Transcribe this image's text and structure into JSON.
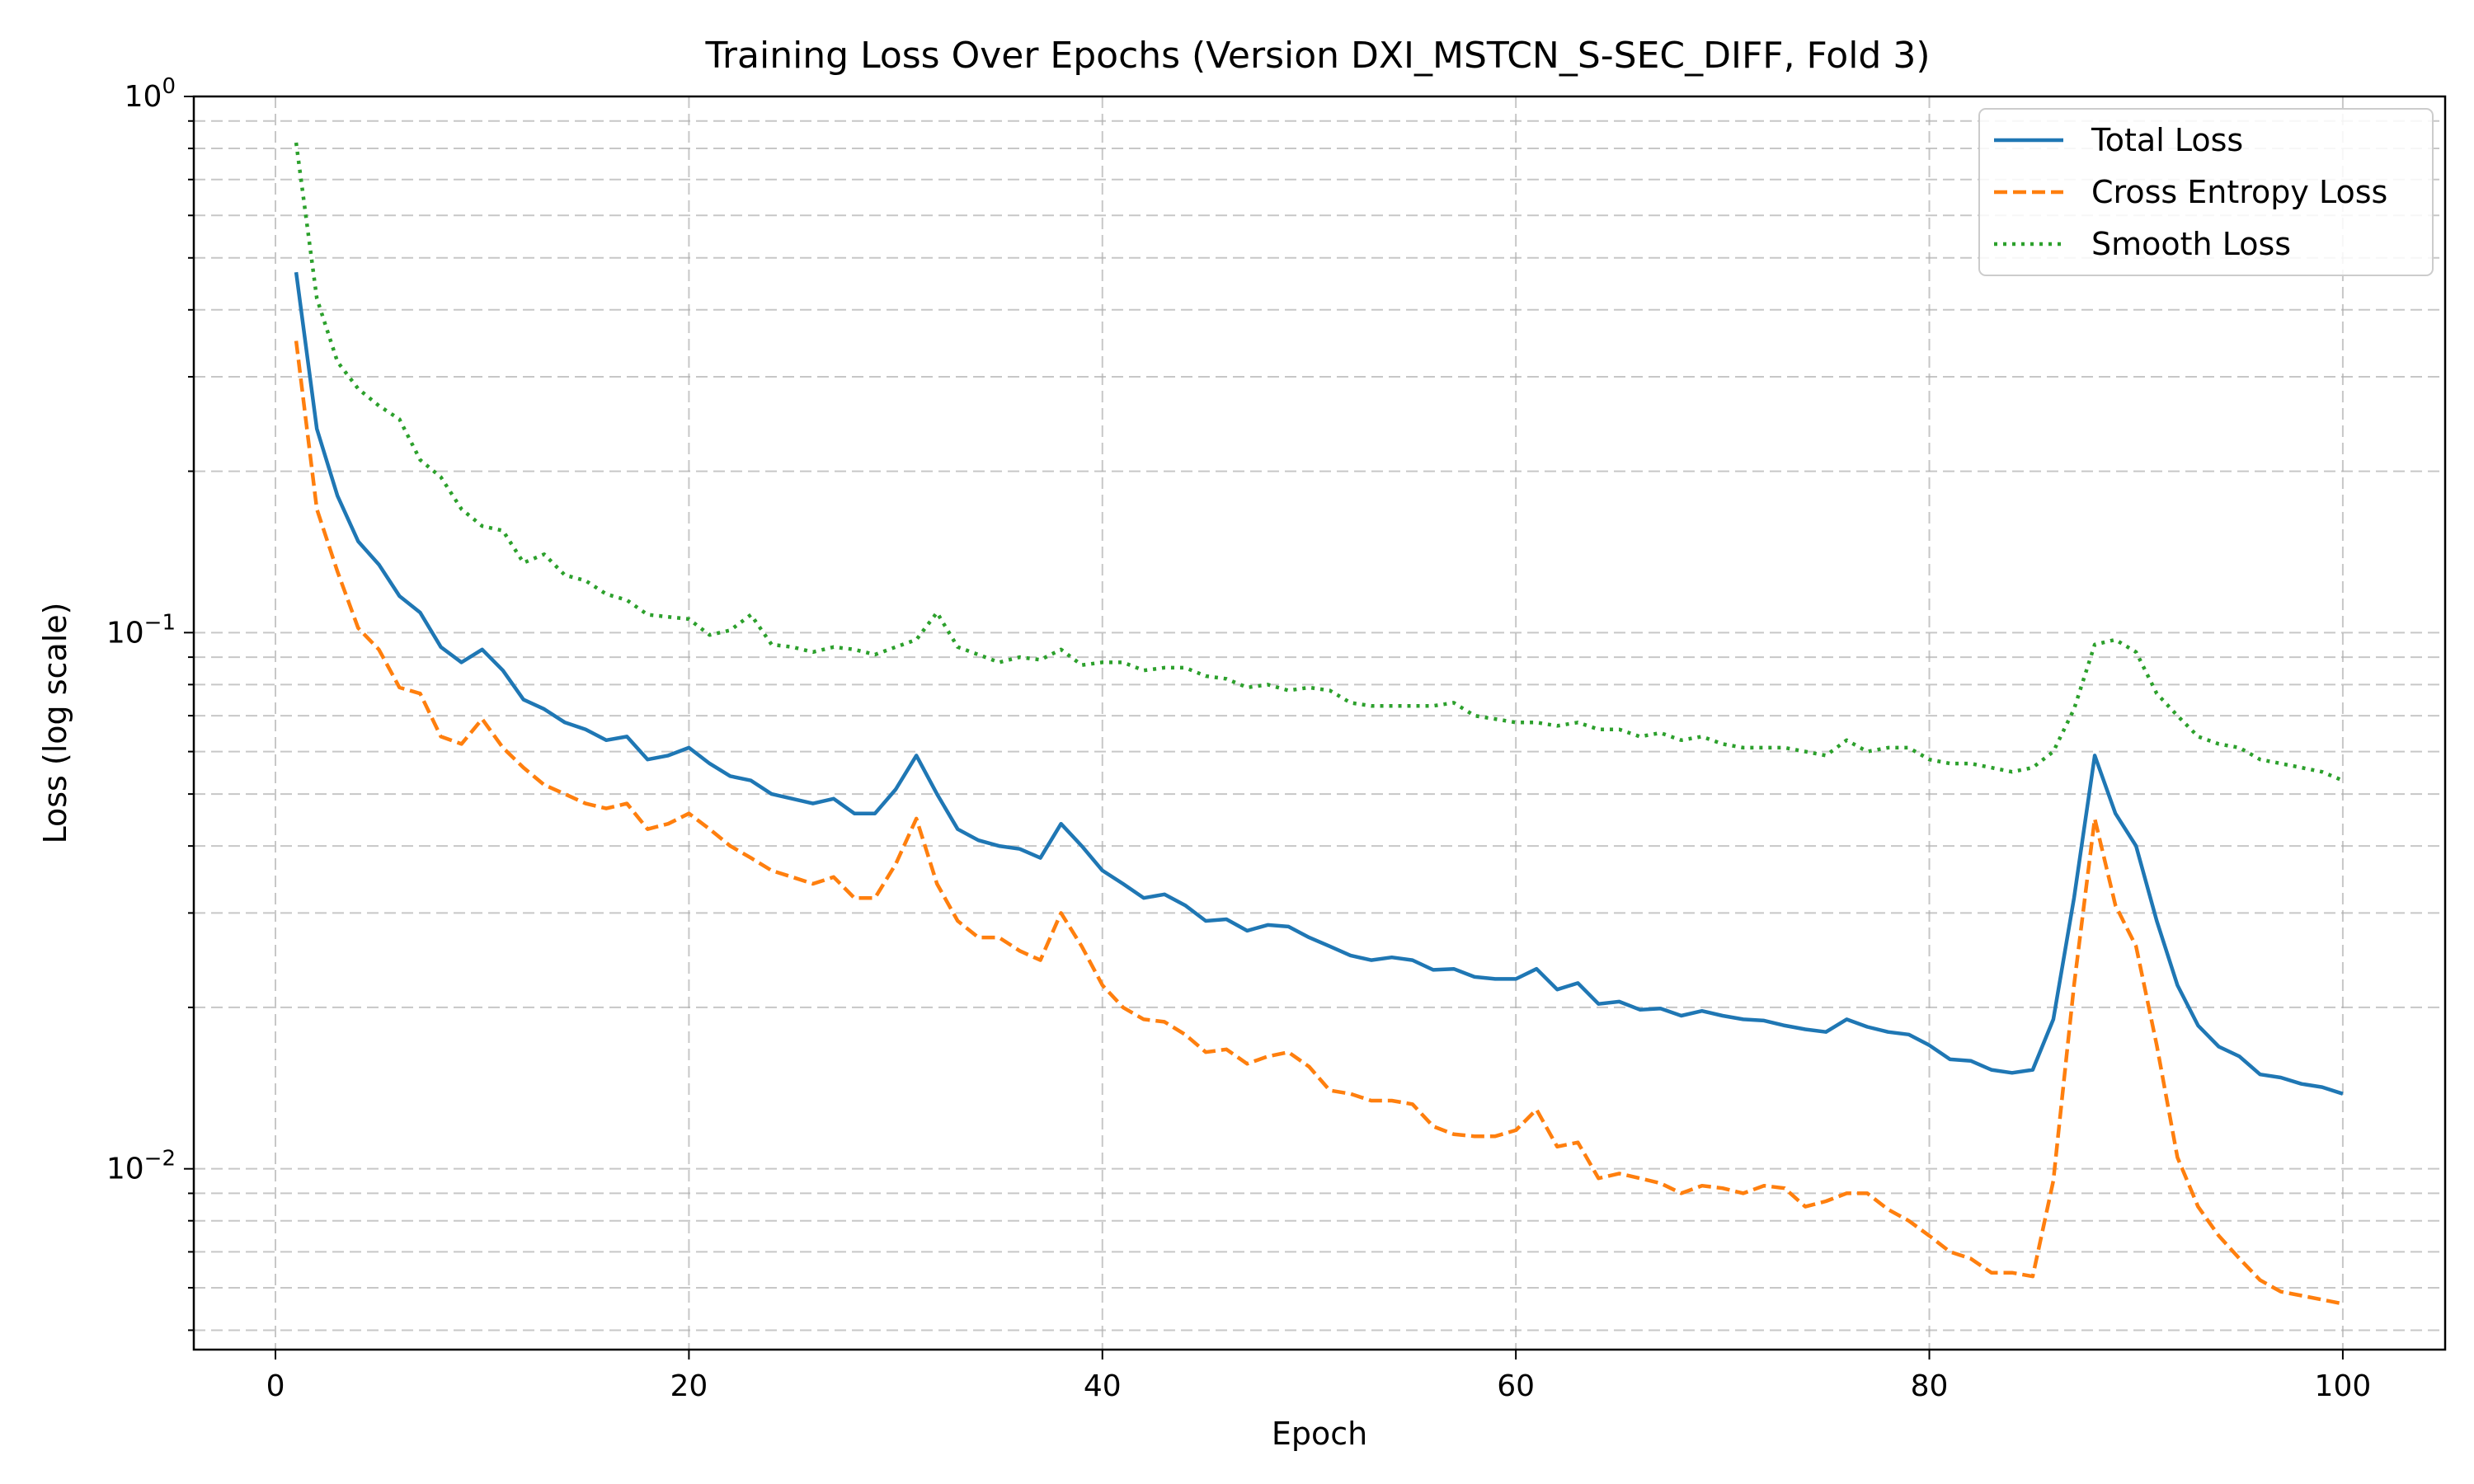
{
  "chart_data": {
    "type": "line",
    "title": "Training Loss Over Epochs (Version DXI_MSTCN_S-SEC_DIFF, Fold 3)",
    "xlabel": "Epoch",
    "ylabel": "Loss (log scale)",
    "yscale": "log",
    "xlim": [
      -3.95,
      104.95
    ],
    "ylim": [
      0.0046,
      1.0
    ],
    "xticks": [
      0,
      20,
      40,
      60,
      80,
      100
    ],
    "xtick_labels": [
      "0",
      "20",
      "40",
      "60",
      "80",
      "100"
    ],
    "yticks": [
      0.01,
      0.1,
      1.0
    ],
    "ytick_labels": [
      {
        "base": "10",
        "exp": "−2"
      },
      {
        "base": "10",
        "exp": "−1"
      },
      {
        "base": "10",
        "exp": "0"
      }
    ],
    "grid": true,
    "legend_position": "top-right",
    "x": [
      1,
      2,
      3,
      4,
      5,
      6,
      7,
      8,
      9,
      10,
      11,
      12,
      13,
      14,
      15,
      16,
      17,
      18,
      19,
      20,
      21,
      22,
      23,
      24,
      25,
      26,
      27,
      28,
      29,
      30,
      31,
      32,
      33,
      34,
      35,
      36,
      37,
      38,
      39,
      40,
      41,
      42,
      43,
      44,
      45,
      46,
      47,
      48,
      49,
      50,
      51,
      52,
      53,
      54,
      55,
      56,
      57,
      58,
      59,
      60,
      61,
      62,
      63,
      64,
      65,
      66,
      67,
      68,
      69,
      70,
      71,
      72,
      73,
      74,
      75,
      76,
      77,
      78,
      79,
      80,
      81,
      82,
      83,
      84,
      85,
      86,
      87,
      88,
      89,
      90,
      91,
      92,
      93,
      94,
      95,
      96,
      97,
      98,
      99,
      100
    ],
    "series": [
      {
        "name": "Total Loss",
        "color": "#1f77b4",
        "dash": "solid",
        "values": [
          0.47,
          0.24,
          0.18,
          0.148,
          0.134,
          0.117,
          0.109,
          0.094,
          0.088,
          0.093,
          0.085,
          0.075,
          0.072,
          0.068,
          0.066,
          0.063,
          0.064,
          0.058,
          0.059,
          0.061,
          0.057,
          0.054,
          0.053,
          0.05,
          0.049,
          0.048,
          0.049,
          0.046,
          0.046,
          0.051,
          0.059,
          0.05,
          0.043,
          0.041,
          0.04,
          0.0395,
          0.038,
          0.044,
          0.04,
          0.036,
          0.034,
          0.032,
          0.0325,
          0.031,
          0.029,
          0.0292,
          0.0278,
          0.0285,
          0.0283,
          0.027,
          0.026,
          0.025,
          0.0245,
          0.0248,
          0.0245,
          0.0235,
          0.0236,
          0.0228,
          0.0226,
          0.0226,
          0.0236,
          0.0216,
          0.0222,
          0.0203,
          0.0205,
          0.0198,
          0.0199,
          0.0193,
          0.0197,
          0.0193,
          0.019,
          0.0189,
          0.0185,
          0.0182,
          0.018,
          0.019,
          0.0184,
          0.018,
          0.0178,
          0.017,
          0.016,
          0.0159,
          0.0153,
          0.0151,
          0.0153,
          0.019,
          0.032,
          0.059,
          0.046,
          0.04,
          0.029,
          0.022,
          0.0185,
          0.0169,
          0.0162,
          0.015,
          0.0148,
          0.0144,
          0.0142,
          0.0138
        ]
      },
      {
        "name": "Cross Entropy Loss",
        "color": "#ff7f0e",
        "dash": "dashed",
        "values": [
          0.35,
          0.17,
          0.13,
          0.102,
          0.093,
          0.079,
          0.077,
          0.064,
          0.062,
          0.069,
          0.061,
          0.056,
          0.052,
          0.05,
          0.048,
          0.047,
          0.048,
          0.043,
          0.044,
          0.046,
          0.043,
          0.04,
          0.038,
          0.036,
          0.035,
          0.034,
          0.035,
          0.032,
          0.032,
          0.037,
          0.045,
          0.034,
          0.029,
          0.027,
          0.027,
          0.0255,
          0.0245,
          0.03,
          0.026,
          0.022,
          0.02,
          0.019,
          0.0188,
          0.0178,
          0.0165,
          0.0167,
          0.0157,
          0.0162,
          0.0165,
          0.0155,
          0.014,
          0.0138,
          0.0134,
          0.0134,
          0.0132,
          0.012,
          0.0116,
          0.0115,
          0.0115,
          0.0118,
          0.0129,
          0.011,
          0.0112,
          0.0096,
          0.0098,
          0.0096,
          0.0094,
          0.009,
          0.0093,
          0.0092,
          0.009,
          0.0093,
          0.0092,
          0.0085,
          0.0087,
          0.009,
          0.009,
          0.0084,
          0.008,
          0.0075,
          0.007,
          0.0068,
          0.0064,
          0.0064,
          0.0063,
          0.0095,
          0.022,
          0.045,
          0.031,
          0.026,
          0.017,
          0.0105,
          0.0085,
          0.0075,
          0.0068,
          0.0062,
          0.0059,
          0.0058,
          0.0057,
          0.0056
        ]
      },
      {
        "name": "Smooth Loss",
        "color": "#2ca02c",
        "dash": "dotted",
        "values": [
          0.82,
          0.42,
          0.32,
          0.285,
          0.265,
          0.25,
          0.21,
          0.195,
          0.17,
          0.158,
          0.155,
          0.135,
          0.14,
          0.128,
          0.125,
          0.118,
          0.115,
          0.108,
          0.107,
          0.106,
          0.099,
          0.101,
          0.108,
          0.095,
          0.094,
          0.092,
          0.094,
          0.093,
          0.091,
          0.094,
          0.097,
          0.109,
          0.094,
          0.091,
          0.088,
          0.09,
          0.089,
          0.093,
          0.087,
          0.088,
          0.088,
          0.085,
          0.086,
          0.086,
          0.083,
          0.082,
          0.079,
          0.08,
          0.078,
          0.079,
          0.078,
          0.074,
          0.073,
          0.073,
          0.073,
          0.073,
          0.074,
          0.07,
          0.069,
          0.068,
          0.068,
          0.067,
          0.068,
          0.066,
          0.066,
          0.064,
          0.065,
          0.063,
          0.064,
          0.062,
          0.061,
          0.061,
          0.061,
          0.06,
          0.059,
          0.063,
          0.06,
          0.061,
          0.061,
          0.058,
          0.057,
          0.057,
          0.056,
          0.055,
          0.056,
          0.06,
          0.072,
          0.095,
          0.097,
          0.092,
          0.077,
          0.07,
          0.064,
          0.062,
          0.061,
          0.058,
          0.057,
          0.056,
          0.055,
          0.053
        ]
      }
    ]
  }
}
